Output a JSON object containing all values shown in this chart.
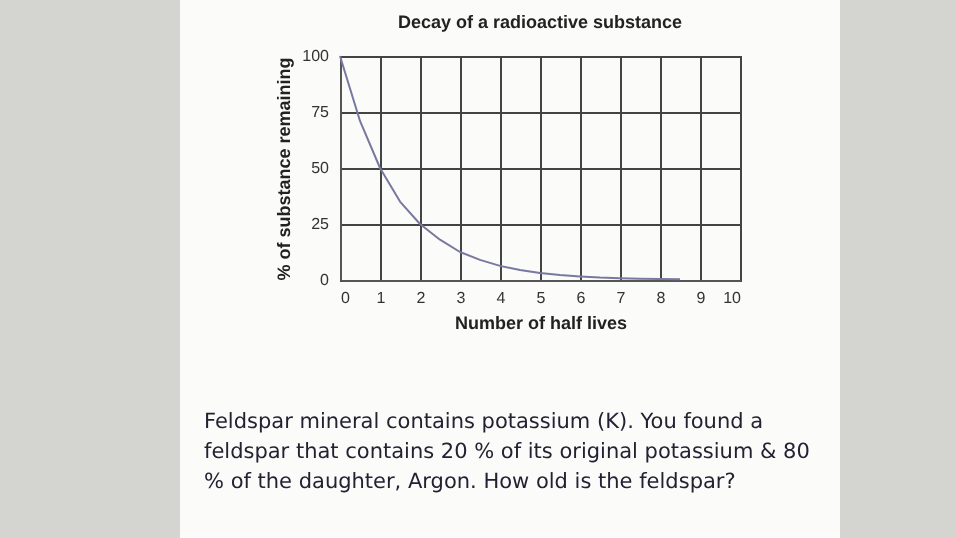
{
  "chart_data": {
    "type": "line",
    "title": "Decay of a radioactive substance",
    "xlabel": "Number of half lives",
    "ylabel": "% of substance remaining",
    "x": [
      0,
      0.5,
      1,
      1.5,
      2,
      2.5,
      3,
      3.5,
      4,
      4.5,
      5,
      5.5,
      6,
      6.5,
      7,
      7.5,
      8,
      8.5
    ],
    "series": [
      {
        "color": "#7878a0",
        "values": [
          100,
          71,
          50,
          35,
          25,
          18,
          12.5,
          9,
          6.3,
          4.5,
          3.1,
          2.2,
          1.6,
          1.1,
          0.8,
          0.6,
          0.4,
          0.3
        ]
      }
    ],
    "xlim": [
      0,
      10
    ],
    "xticks": [
      0,
      1,
      2,
      3,
      4,
      5,
      6,
      7,
      8,
      9,
      10
    ],
    "ylim": [
      0,
      100
    ],
    "yticks": [
      0,
      25,
      50,
      75,
      100
    ],
    "grid": true,
    "marker": "none",
    "line_style": "solid",
    "annotations": [
      "Feldspar mineral contains potassium (K). You found a feldspar that contains 20 % of its original potassium & 80 % of the daughter, Argon. How old is the feldspar?"
    ]
  }
}
